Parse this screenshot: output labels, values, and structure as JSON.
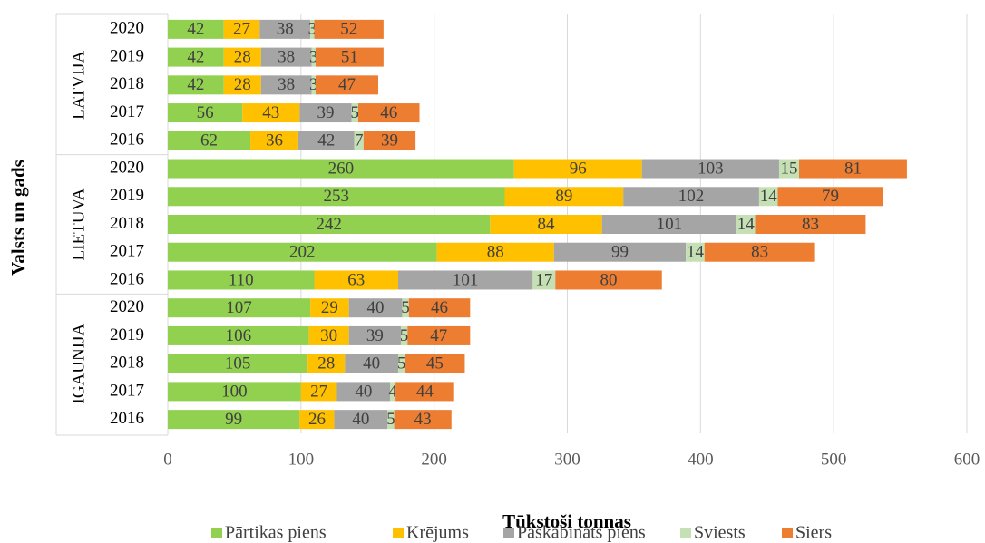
{
  "chart_data": {
    "type": "stacked_barh",
    "group_labels": [
      "LATVIJA",
      "LIETUVA",
      "IGAUNIJA"
    ],
    "categories": [
      "2020",
      "2019",
      "2018",
      "2017",
      "2016",
      "2020",
      "2019",
      "2018",
      "2017",
      "2016",
      "2020",
      "2019",
      "2018",
      "2017",
      "2016"
    ],
    "series": [
      {
        "name": "Pārtikas piens",
        "color": "#92d050",
        "values": [
          42,
          42,
          42,
          56,
          62,
          260,
          253,
          242,
          202,
          110,
          107,
          106,
          105,
          100,
          99
        ]
      },
      {
        "name": "Krējums",
        "color": "#ffc000",
        "values": [
          27,
          28,
          28,
          43,
          36,
          96,
          89,
          84,
          88,
          63,
          29,
          30,
          28,
          27,
          26
        ]
      },
      {
        "name": "Paskābināts piens",
        "color": "#a5a5a5",
        "values": [
          38,
          38,
          38,
          39,
          42,
          103,
          102,
          101,
          99,
          101,
          40,
          39,
          40,
          40,
          40
        ]
      },
      {
        "name": "Sviests",
        "color": "#c5e0b4",
        "values": [
          3,
          3,
          3,
          5,
          7,
          15,
          14,
          14,
          14,
          17,
          5,
          5,
          5,
          4,
          5
        ]
      },
      {
        "name": "Siers",
        "color": "#ed7d31",
        "values": [
          52,
          51,
          47,
          46,
          39,
          81,
          79,
          83,
          83,
          80,
          46,
          47,
          45,
          44,
          43
        ]
      }
    ],
    "xlabel": "Tūkstoši tonnas",
    "ylabel": "Valsts un gads",
    "xlim": [
      0,
      600
    ],
    "xticks": [
      0,
      100,
      200,
      300,
      400,
      500,
      600
    ],
    "grid": true,
    "legend": "bottom"
  }
}
